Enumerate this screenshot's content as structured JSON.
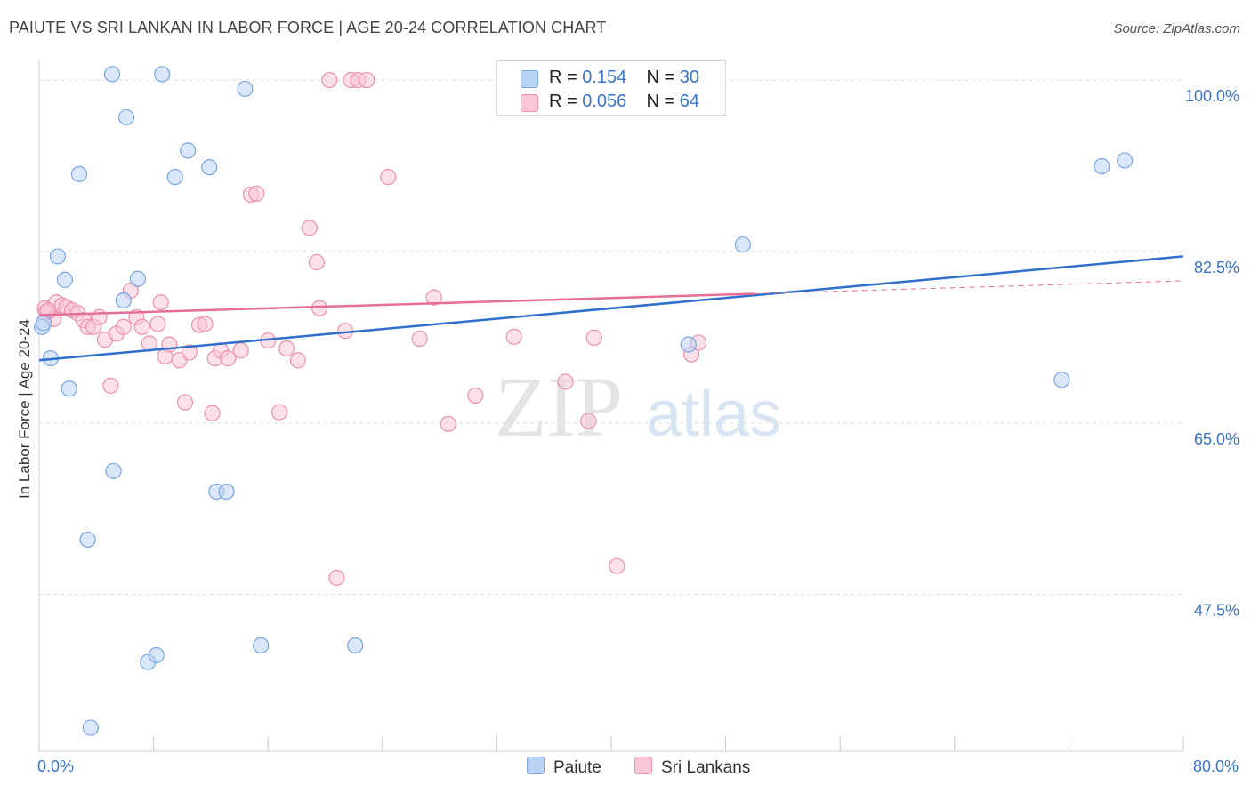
{
  "header": {
    "title": "PAIUTE VS SRI LANKAN IN LABOR FORCE | AGE 20-24 CORRELATION CHART",
    "source": "Source: ZipAtlas.com"
  },
  "legend": {
    "rows": [
      {
        "r_label": "R = ",
        "r_value": "0.154",
        "n_label": "N = ",
        "n_value": "30"
      },
      {
        "r_label": "R = ",
        "r_value": "0.056",
        "n_label": "N = ",
        "n_value": "64"
      }
    ],
    "bottom": [
      "Paiute",
      "Sri Lankans"
    ]
  },
  "watermark": {
    "zip": "ZIP",
    "atlas": "atlas"
  },
  "colors": {
    "paiute_fill": "#b9d3f4",
    "paiute_stroke": "#7aa6e0",
    "paiute_line": "#2e6fcc",
    "srilankan_fill": "#f8c6d6",
    "srilankan_stroke": "#ec90ae",
    "srilankan_line": "#e66d98",
    "axis_label": "#3a73c8",
    "grid": "#dddddd"
  },
  "chart_data": {
    "type": "scatter",
    "title": "PAIUTE VS SRI LANKAN IN LABOR FORCE | AGE 20-24 CORRELATION CHART",
    "xlabel": "",
    "ylabel": "In Labor Force | Age 20-24",
    "xlim": [
      0,
      80
    ],
    "ylim": [
      31.5,
      102
    ],
    "x_tick_labels": [
      "0.0%",
      "80.0%"
    ],
    "y_ticks": [
      47.5,
      65.0,
      82.5,
      100.0
    ],
    "y_tick_labels": [
      "47.5%",
      "65.0%",
      "82.5%",
      "100.0%"
    ],
    "grid": true,
    "legend_placement": "top-center",
    "series": [
      {
        "name": "Paiute",
        "R": 0.154,
        "N": 30,
        "points": [
          [
            0.2,
            74.8
          ],
          [
            0.8,
            71.6
          ],
          [
            1.3,
            82.0
          ],
          [
            1.8,
            79.6
          ],
          [
            2.1,
            68.5
          ],
          [
            2.8,
            90.4
          ],
          [
            3.4,
            53.1
          ],
          [
            3.6,
            33.9
          ],
          [
            5.1,
            100.6
          ],
          [
            5.2,
            60.1
          ],
          [
            5.9,
            77.5
          ],
          [
            6.1,
            96.2
          ],
          [
            6.9,
            79.7
          ],
          [
            7.6,
            40.6
          ],
          [
            8.2,
            41.3
          ],
          [
            8.6,
            100.6
          ],
          [
            9.5,
            90.1
          ],
          [
            10.4,
            92.8
          ],
          [
            11.9,
            91.1
          ],
          [
            12.4,
            58.0
          ],
          [
            13.1,
            58.0
          ],
          [
            14.4,
            99.1
          ],
          [
            15.5,
            42.3
          ],
          [
            22.1,
            42.3
          ],
          [
            45.4,
            73.0
          ],
          [
            49.2,
            83.2
          ],
          [
            71.5,
            69.4
          ],
          [
            74.3,
            91.2
          ],
          [
            75.9,
            91.8
          ],
          [
            0.3,
            75.2
          ]
        ],
        "trend": {
          "x": [
            0,
            80
          ],
          "y": [
            71.4,
            82.0
          ]
        }
      },
      {
        "name": "Sri Lankans",
        "R": 0.056,
        "N": 64,
        "points": [
          [
            0.4,
            76.7
          ],
          [
            0.7,
            76.4
          ],
          [
            1.0,
            75.6
          ],
          [
            1.2,
            77.3
          ],
          [
            1.6,
            77.0
          ],
          [
            1.9,
            76.8
          ],
          [
            2.3,
            76.5
          ],
          [
            2.7,
            76.2
          ],
          [
            3.1,
            75.5
          ],
          [
            3.4,
            74.8
          ],
          [
            3.8,
            74.8
          ],
          [
            4.2,
            75.8
          ],
          [
            4.6,
            73.5
          ],
          [
            5.0,
            68.8
          ],
          [
            5.4,
            74.1
          ],
          [
            5.9,
            74.8
          ],
          [
            6.4,
            78.5
          ],
          [
            6.8,
            75.8
          ],
          [
            7.2,
            74.8
          ],
          [
            7.7,
            73.1
          ],
          [
            8.3,
            75.1
          ],
          [
            8.5,
            77.3
          ],
          [
            8.8,
            71.8
          ],
          [
            9.1,
            73.0
          ],
          [
            9.8,
            71.4
          ],
          [
            10.2,
            67.1
          ],
          [
            10.5,
            72.2
          ],
          [
            11.2,
            75.0
          ],
          [
            11.6,
            75.1
          ],
          [
            12.1,
            66.0
          ],
          [
            12.3,
            71.6
          ],
          [
            12.7,
            72.4
          ],
          [
            13.2,
            71.6
          ],
          [
            14.1,
            72.4
          ],
          [
            14.8,
            88.3
          ],
          [
            15.2,
            88.4
          ],
          [
            16.0,
            73.4
          ],
          [
            16.8,
            66.1
          ],
          [
            17.3,
            72.6
          ],
          [
            18.1,
            71.4
          ],
          [
            18.9,
            84.9
          ],
          [
            19.4,
            81.4
          ],
          [
            19.6,
            76.7
          ],
          [
            20.3,
            100.0
          ],
          [
            20.8,
            49.2
          ],
          [
            21.4,
            74.4
          ],
          [
            21.8,
            100.0
          ],
          [
            22.3,
            100.0
          ],
          [
            22.9,
            100.0
          ],
          [
            24.4,
            90.1
          ],
          [
            26.6,
            73.6
          ],
          [
            27.6,
            77.8
          ],
          [
            28.6,
            64.9
          ],
          [
            30.5,
            67.8
          ],
          [
            33.2,
            73.8
          ],
          [
            33.7,
            100.0
          ],
          [
            36.8,
            69.2
          ],
          [
            38.4,
            65.2
          ],
          [
            38.8,
            73.7
          ],
          [
            40.4,
            50.4
          ],
          [
            45.6,
            72.0
          ],
          [
            46.1,
            73.2
          ],
          [
            0.5,
            76.3
          ],
          [
            0.6,
            76.5
          ]
        ],
        "trend": {
          "x": [
            0,
            80
          ],
          "y": [
            76.0,
            79.5
          ]
        }
      }
    ]
  }
}
